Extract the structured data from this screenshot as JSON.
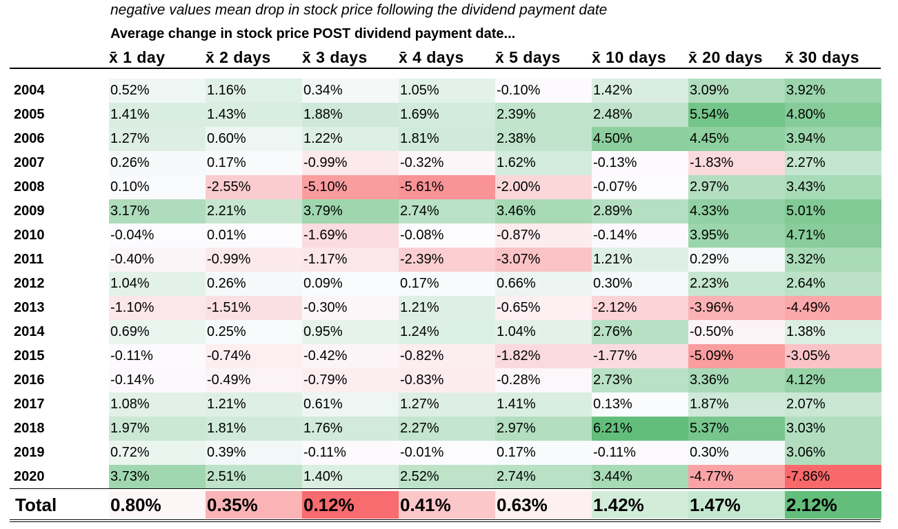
{
  "chart_data": {
    "type": "heatmap",
    "note": "negative values mean drop in stock price following the dividend payment date",
    "title": "Average change in stock price POST dividend payment date...",
    "columns": [
      "x̄ 1 day",
      "x̄ 2 days",
      "x̄ 3 days",
      "x̄ 4 days",
      "x̄ 5 days",
      "x̄ 10 days",
      "x̄ 20 days",
      "x̄ 30 days"
    ],
    "rows": [
      {
        "label": "2004",
        "values": [
          0.52,
          1.16,
          0.34,
          1.05,
          -0.1,
          1.42,
          3.09,
          3.92
        ],
        "display": [
          "0.52%",
          "1.16%",
          "0.34%",
          "1.05%",
          "-0.10%",
          "1.42%",
          "3.09%",
          "3.92%"
        ]
      },
      {
        "label": "2005",
        "values": [
          1.41,
          1.43,
          1.88,
          1.69,
          2.39,
          2.48,
          5.54,
          4.8
        ],
        "display": [
          "1.41%",
          "1.43%",
          "1.88%",
          "1.69%",
          "2.39%",
          "2.48%",
          "5.54%",
          "4.80%"
        ]
      },
      {
        "label": "2006",
        "values": [
          1.27,
          0.6,
          1.22,
          1.81,
          2.38,
          4.5,
          4.45,
          3.94
        ],
        "display": [
          "1.27%",
          "0.60%",
          "1.22%",
          "1.81%",
          "2.38%",
          "4.50%",
          "4.45%",
          "3.94%"
        ]
      },
      {
        "label": "2007",
        "values": [
          0.26,
          0.17,
          -0.99,
          -0.32,
          1.62,
          -0.13,
          -1.83,
          2.27
        ],
        "display": [
          "0.26%",
          "0.17%",
          "-0.99%",
          "-0.32%",
          "1.62%",
          "-0.13%",
          "-1.83%",
          "2.27%"
        ]
      },
      {
        "label": "2008",
        "values": [
          0.1,
          -2.55,
          -5.1,
          -5.61,
          -2.0,
          -0.07,
          2.97,
          3.43
        ],
        "display": [
          "0.10%",
          "-2.55%",
          "-5.10%",
          "-5.61%",
          "-2.00%",
          "-0.07%",
          "2.97%",
          "3.43%"
        ]
      },
      {
        "label": "2009",
        "values": [
          3.17,
          2.21,
          3.79,
          2.74,
          3.46,
          2.89,
          4.33,
          5.01
        ],
        "display": [
          "3.17%",
          "2.21%",
          "3.79%",
          "2.74%",
          "3.46%",
          "2.89%",
          "4.33%",
          "5.01%"
        ]
      },
      {
        "label": "2010",
        "values": [
          -0.04,
          0.01,
          -1.69,
          -0.08,
          -0.87,
          -0.14,
          3.95,
          4.71
        ],
        "display": [
          "-0.04%",
          "0.01%",
          "-1.69%",
          "-0.08%",
          "-0.87%",
          "-0.14%",
          "3.95%",
          "4.71%"
        ]
      },
      {
        "label": "2011",
        "values": [
          -0.4,
          -0.99,
          -1.17,
          -2.39,
          -3.07,
          1.21,
          0.29,
          3.32
        ],
        "display": [
          "-0.40%",
          "-0.99%",
          "-1.17%",
          "-2.39%",
          "-3.07%",
          "1.21%",
          "0.29%",
          "3.32%"
        ]
      },
      {
        "label": "2012",
        "values": [
          1.04,
          0.26,
          0.09,
          0.17,
          0.66,
          0.3,
          2.23,
          2.64
        ],
        "display": [
          "1.04%",
          "0.26%",
          "0.09%",
          "0.17%",
          "0.66%",
          "0.30%",
          "2.23%",
          "2.64%"
        ]
      },
      {
        "label": "2013",
        "values": [
          -1.1,
          -1.51,
          -0.3,
          1.21,
          -0.65,
          -2.12,
          -3.96,
          -4.49
        ],
        "display": [
          "-1.10%",
          "-1.51%",
          "-0.30%",
          "1.21%",
          "-0.65%",
          "-2.12%",
          "-3.96%",
          "-4.49%"
        ]
      },
      {
        "label": "2014",
        "values": [
          0.69,
          0.25,
          0.95,
          1.24,
          1.04,
          2.76,
          -0.5,
          1.38
        ],
        "display": [
          "0.69%",
          "0.25%",
          "0.95%",
          "1.24%",
          "1.04%",
          "2.76%",
          "-0.50%",
          "1.38%"
        ]
      },
      {
        "label": "2015",
        "values": [
          -0.11,
          -0.74,
          -0.42,
          -0.82,
          -1.82,
          -1.77,
          -5.09,
          -3.05
        ],
        "display": [
          "-0.11%",
          "-0.74%",
          "-0.42%",
          "-0.82%",
          "-1.82%",
          "-1.77%",
          "-5.09%",
          "-3.05%"
        ]
      },
      {
        "label": "2016",
        "values": [
          -0.14,
          -0.49,
          -0.79,
          -0.83,
          -0.28,
          2.73,
          3.36,
          4.12
        ],
        "display": [
          "-0.14%",
          "-0.49%",
          "-0.79%",
          "-0.83%",
          "-0.28%",
          "2.73%",
          "3.36%",
          "4.12%"
        ]
      },
      {
        "label": "2017",
        "values": [
          1.08,
          1.21,
          0.61,
          1.27,
          1.41,
          0.13,
          1.87,
          2.07
        ],
        "display": [
          "1.08%",
          "1.21%",
          "0.61%",
          "1.27%",
          "1.41%",
          "0.13%",
          "1.87%",
          "2.07%"
        ]
      },
      {
        "label": "2018",
        "values": [
          1.97,
          1.81,
          1.76,
          2.27,
          2.97,
          6.21,
          5.37,
          3.03
        ],
        "display": [
          "1.97%",
          "1.81%",
          "1.76%",
          "2.27%",
          "2.97%",
          "6.21%",
          "5.37%",
          "3.03%"
        ]
      },
      {
        "label": "2019",
        "values": [
          0.72,
          0.39,
          -0.11,
          -0.01,
          0.17,
          -0.11,
          0.3,
          3.06
        ],
        "display": [
          "0.72%",
          "0.39%",
          "-0.11%",
          "-0.01%",
          "0.17%",
          "-0.11%",
          "0.30%",
          "3.06%"
        ]
      },
      {
        "label": "2020",
        "values": [
          3.73,
          2.51,
          1.4,
          2.52,
          2.74,
          3.44,
          -4.77,
          -7.86
        ],
        "display": [
          "3.73%",
          "2.51%",
          "1.40%",
          "2.52%",
          "2.74%",
          "3.44%",
          "-4.77%",
          "-7.86%"
        ]
      }
    ],
    "total": {
      "label": "Total",
      "values": [
        0.8,
        0.35,
        0.12,
        0.41,
        0.63,
        1.42,
        1.47,
        2.12
      ],
      "display": [
        "0.80%",
        "0.35%",
        "0.12%",
        "0.41%",
        "0.63%",
        "1.42%",
        "1.47%",
        "2.12%"
      ],
      "colors": [
        "#fdf6f7",
        "#fab4b6",
        "#f86b6e",
        "#fbc7c9",
        "#fdf0f1",
        "#d2ecda",
        "#c6e7d0",
        "#63be7b"
      ]
    },
    "colors": {
      "negative_max": "#f8696b",
      "neutral": "#fcfcff",
      "positive_max": "#63be7b"
    }
  }
}
